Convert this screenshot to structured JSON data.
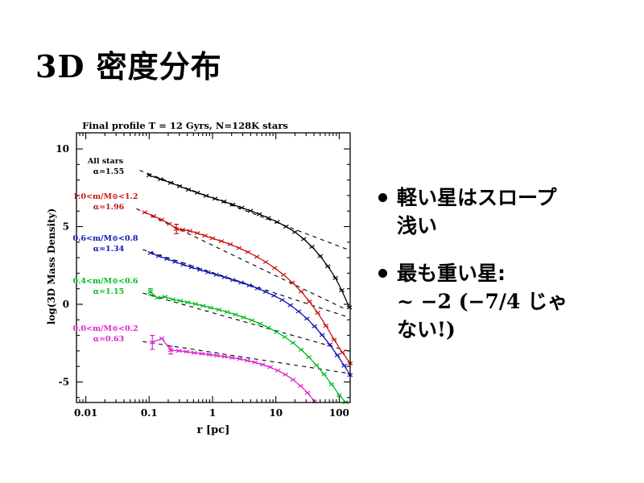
{
  "slide": {
    "title": "3D 密度分布",
    "bullets": [
      {
        "lines": [
          "軽い星はスロープ",
          "浅い"
        ]
      },
      {
        "lines": [
          "最も重い星:",
          "~ −2 (−7/4 じゃ",
          "ない!)"
        ]
      }
    ]
  },
  "chart_data": {
    "type": "line",
    "title": "Final profile T = 12 Gyrs, N=128K stars",
    "xlabel": "r [pc]",
    "ylabel": "log(3D Mass Density)",
    "x_scale": "log",
    "xlim": [
      0.007,
      150
    ],
    "ylim": [
      -6.4,
      11.0
    ],
    "x_ticks": {
      "values": [
        0.01,
        0.1,
        1,
        10,
        100
      ],
      "labels": [
        "0.01",
        "0.1",
        "1",
        "10",
        "100"
      ]
    },
    "y_ticks": {
      "values": [
        -5,
        0,
        5,
        10
      ],
      "labels": [
        "-5",
        "0",
        "5",
        "10"
      ]
    },
    "grid": false,
    "legend_position": "inside-left",
    "series": [
      {
        "id": "all-stars",
        "label": "All stars",
        "alpha_label": "α=1.55",
        "slope_alpha": 1.55,
        "color": "#000000",
        "fit_line": {
          "log10r": [
            -1.15,
            2.15
          ],
          "y": [
            8.62,
            3.5
          ]
        },
        "points_log10r_y_err": [
          [
            -1.0,
            8.3
          ],
          [
            -0.82,
            8.05
          ],
          [
            -0.66,
            7.82
          ],
          [
            -0.52,
            7.6
          ],
          [
            -0.38,
            7.38
          ],
          [
            -0.24,
            7.18
          ],
          [
            -0.1,
            6.98
          ],
          [
            0.04,
            6.8
          ],
          [
            0.18,
            6.62
          ],
          [
            0.32,
            6.42
          ],
          [
            0.46,
            6.22
          ],
          [
            0.6,
            6.02
          ],
          [
            0.74,
            5.8
          ],
          [
            0.88,
            5.56
          ],
          [
            1.02,
            5.3
          ],
          [
            1.16,
            5.0
          ],
          [
            1.3,
            4.65
          ],
          [
            1.44,
            4.2
          ],
          [
            1.57,
            3.7
          ],
          [
            1.7,
            3.1
          ],
          [
            1.82,
            2.45
          ],
          [
            1.94,
            1.7
          ],
          [
            2.04,
            0.9
          ],
          [
            2.16,
            -0.2
          ]
        ]
      },
      {
        "id": "m-1.0-1.2",
        "label": "1.0<m/M⊙<1.2",
        "alpha_label": "α=1.96",
        "slope_alpha": 1.96,
        "color": "#cc1111",
        "fit_line": {
          "log10r": [
            -1.2,
            2.1
          ],
          "y": [
            6.15,
            -0.32
          ]
        },
        "points_log10r_y_err": [
          [
            -1.07,
            5.92
          ],
          [
            -0.93,
            5.68
          ],
          [
            -0.8,
            5.45
          ],
          [
            -0.68,
            5.18
          ],
          [
            -0.57,
            4.85,
            0.3
          ],
          [
            -0.47,
            4.8
          ],
          [
            -0.36,
            4.72
          ],
          [
            -0.24,
            4.58
          ],
          [
            -0.12,
            4.42
          ],
          [
            0.0,
            4.25
          ],
          [
            0.14,
            4.06
          ],
          [
            0.28,
            3.86
          ],
          [
            0.42,
            3.62
          ],
          [
            0.56,
            3.36
          ],
          [
            0.7,
            3.06
          ],
          [
            0.84,
            2.72
          ],
          [
            0.98,
            2.34
          ],
          [
            1.12,
            1.9
          ],
          [
            1.26,
            1.4
          ],
          [
            1.4,
            0.82
          ],
          [
            1.53,
            0.18
          ],
          [
            1.66,
            -0.55
          ],
          [
            1.79,
            -1.38
          ],
          [
            1.92,
            -2.28
          ],
          [
            2.05,
            -3.1
          ],
          [
            2.17,
            -3.8
          ]
        ]
      },
      {
        "id": "m-0.6-0.8",
        "label": "0.6<m/M⊙<0.8",
        "alpha_label": "α=1.34",
        "slope_alpha": 1.34,
        "color": "#1111bb",
        "fit_line": {
          "log10r": [
            -1.1,
            2.15
          ],
          "y": [
            3.52,
            -0.84
          ]
        },
        "points_log10r_y_err": [
          [
            -0.98,
            3.3
          ],
          [
            -0.85,
            3.1
          ],
          [
            -0.72,
            2.92
          ],
          [
            -0.59,
            2.73
          ],
          [
            -0.46,
            2.55
          ],
          [
            -0.33,
            2.38
          ],
          [
            -0.2,
            2.22
          ],
          [
            -0.07,
            2.06
          ],
          [
            0.06,
            1.9
          ],
          [
            0.19,
            1.74
          ],
          [
            0.32,
            1.57
          ],
          [
            0.45,
            1.4
          ],
          [
            0.58,
            1.22
          ],
          [
            0.71,
            1.02
          ],
          [
            0.84,
            0.8
          ],
          [
            0.97,
            0.56
          ],
          [
            1.1,
            0.28
          ],
          [
            1.23,
            -0.06
          ],
          [
            1.36,
            -0.46
          ],
          [
            1.49,
            -0.92
          ],
          [
            1.61,
            -1.42
          ],
          [
            1.73,
            -1.98
          ],
          [
            1.85,
            -2.6
          ],
          [
            1.97,
            -3.28
          ],
          [
            2.08,
            -3.95
          ],
          [
            2.17,
            -4.55
          ]
        ]
      },
      {
        "id": "m-0.4-0.6",
        "label": "0.4<m/M⊙<0.6",
        "alpha_label": "α=1.15",
        "slope_alpha": 1.15,
        "color": "#00bb22",
        "fit_line": {
          "log10r": [
            -1.1,
            2.15
          ],
          "y": [
            0.72,
            -3.02
          ]
        },
        "points_log10r_y_err": [
          [
            -0.98,
            0.8,
            0.2
          ],
          [
            -0.87,
            0.42
          ],
          [
            -0.75,
            0.48
          ],
          [
            -0.63,
            0.32
          ],
          [
            -0.51,
            0.22
          ],
          [
            -0.39,
            0.12
          ],
          [
            -0.27,
            0.02
          ],
          [
            -0.15,
            -0.1
          ],
          [
            -0.03,
            -0.22
          ],
          [
            0.1,
            -0.35
          ],
          [
            0.23,
            -0.5
          ],
          [
            0.36,
            -0.66
          ],
          [
            0.49,
            -0.84
          ],
          [
            0.62,
            -1.03
          ],
          [
            0.75,
            -1.25
          ],
          [
            0.88,
            -1.5
          ],
          [
            1.01,
            -1.78
          ],
          [
            1.14,
            -2.1
          ],
          [
            1.27,
            -2.48
          ],
          [
            1.4,
            -2.92
          ],
          [
            1.52,
            -3.4
          ],
          [
            1.64,
            -3.92
          ],
          [
            1.76,
            -4.5
          ],
          [
            1.88,
            -5.15
          ],
          [
            2.0,
            -5.85
          ],
          [
            2.1,
            -6.3
          ]
        ]
      },
      {
        "id": "m-0.0-0.2",
        "label": "0.0<m/M⊙<0.2",
        "alpha_label": "α=0.63",
        "slope_alpha": 0.63,
        "color": "#dd22cc",
        "fit_line": {
          "log10r": [
            -1.1,
            2.15
          ],
          "y": [
            -2.4,
            -4.45
          ]
        },
        "points_log10r_y_err": [
          [
            -0.95,
            -2.45,
            0.45
          ],
          [
            -0.8,
            -2.2
          ],
          [
            -0.66,
            -2.95,
            0.25
          ],
          [
            -0.53,
            -3.0
          ],
          [
            -0.41,
            -3.05
          ],
          [
            -0.29,
            -3.12
          ],
          [
            -0.17,
            -3.18
          ],
          [
            -0.05,
            -3.24
          ],
          [
            0.07,
            -3.3
          ],
          [
            0.19,
            -3.37
          ],
          [
            0.31,
            -3.44
          ],
          [
            0.43,
            -3.52
          ],
          [
            0.55,
            -3.62
          ],
          [
            0.67,
            -3.74
          ],
          [
            0.79,
            -3.88
          ],
          [
            0.91,
            -4.05
          ],
          [
            1.03,
            -4.26
          ],
          [
            1.15,
            -4.52
          ],
          [
            1.27,
            -4.85
          ],
          [
            1.39,
            -5.25
          ],
          [
            1.5,
            -5.7
          ],
          [
            1.61,
            -6.25
          ]
        ]
      }
    ]
  }
}
